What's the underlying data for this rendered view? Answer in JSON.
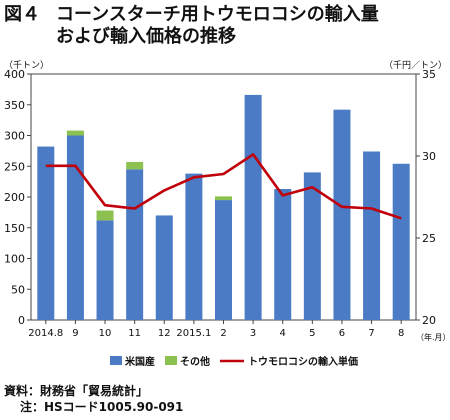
{
  "title": {
    "figure_label": "図４",
    "line1": "コーンスターチ用トウモロコシの輸入量",
    "line2": "および輸入価格の推移"
  },
  "source": {
    "line1": "資料：財務省「貿易統計」",
    "line2": "注：HSコード1005.90-091"
  },
  "chart_data": {
    "type": "bar",
    "categories": [
      "2014.8",
      "9",
      "10",
      "11",
      "12",
      "2015.1",
      "2",
      "3",
      "4",
      "5",
      "6",
      "7",
      "8"
    ],
    "left_unit": "（千トン）",
    "right_unit": "（千円／トン）",
    "x_unit": "（年.月）",
    "ylim": [
      0,
      400
    ],
    "yticks": [
      0,
      50,
      100,
      150,
      200,
      250,
      300,
      350,
      400
    ],
    "y2lim": [
      20,
      35
    ],
    "y2ticks": [
      20,
      25,
      30,
      35
    ],
    "series": [
      {
        "name": "米国産",
        "type": "bar",
        "stack": "import",
        "color": "#4a7bc4",
        "values": [
          282,
          300,
          162,
          245,
          170,
          238,
          195,
          366,
          213,
          240,
          342,
          274,
          254
        ]
      },
      {
        "name": "その他",
        "type": "bar",
        "stack": "import",
        "color": "#8cc04f",
        "values": [
          0,
          8,
          16,
          12,
          0,
          0,
          6,
          0,
          0,
          0,
          0,
          0,
          0
        ]
      },
      {
        "name": "トウモロコシの輸入単価",
        "type": "line",
        "axis": "right",
        "color": "#c0000b",
        "values": [
          29.4,
          29.4,
          27.0,
          26.8,
          27.9,
          28.7,
          28.9,
          30.1,
          27.6,
          28.1,
          26.9,
          26.8,
          26.2
        ]
      }
    ]
  }
}
